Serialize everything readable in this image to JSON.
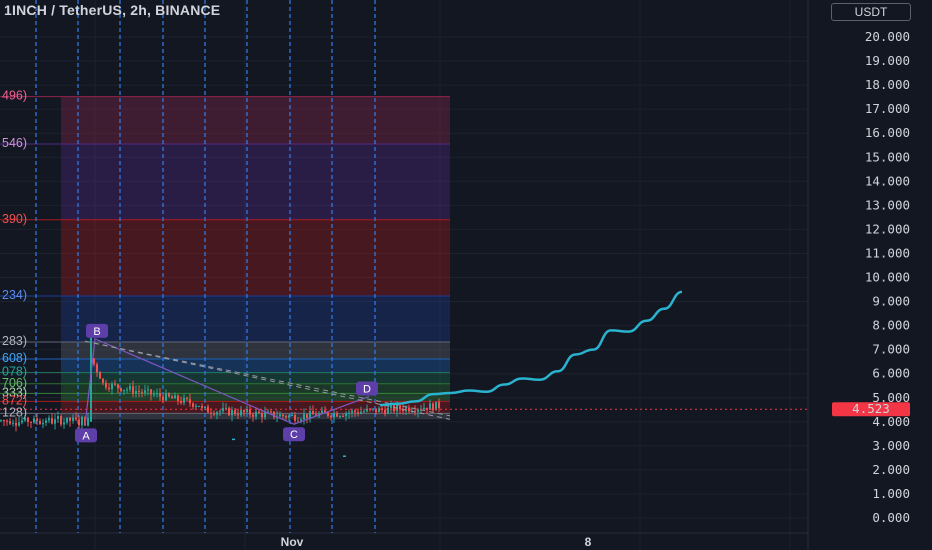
{
  "header": {
    "title": "1INCH / TetherUS, 2h, BINANCE",
    "currency": "USDT"
  },
  "colors": {
    "background": "#131722",
    "grid": "#1e222d",
    "vline": "#2f7ff0",
    "up": "#26a69a",
    "down": "#ef5350",
    "projection": "#2ab3cf",
    "point_label": "#5e3ea8",
    "price_tag": "#f23645"
  },
  "chart_data": {
    "type": "line",
    "y_axis": {
      "min": 0,
      "max": 21,
      "ticks": [
        "0.000",
        "1.000",
        "2.000",
        "3.000",
        "4.000",
        "5.000",
        "6.000",
        "7.000",
        "8.000",
        "9.000",
        "10.000",
        "11.000",
        "12.000",
        "13.000",
        "14.000",
        "15.000",
        "16.000",
        "17.000",
        "18.000",
        "19.000",
        "20.000"
      ]
    },
    "x_axis": {
      "labels": [
        "Nov",
        "8"
      ]
    },
    "last_price": {
      "value": 4.523,
      "label": "4.523"
    },
    "fib_zones": [
      {
        "from": 15.55,
        "to": 17.52,
        "color": "#9c2750",
        "label": "496)",
        "label_color": "#f06292"
      },
      {
        "from": 12.4,
        "to": 15.55,
        "color": "#5a2a8e",
        "label": "546)",
        "label_color": "#ce93d8"
      },
      {
        "from": 9.23,
        "to": 12.4,
        "color": "#b71c1c",
        "label": "390)",
        "label_color": "#ef5350"
      },
      {
        "from": 7.32,
        "to": 9.23,
        "color": "#1e40a0",
        "label": "234)",
        "label_color": "#5b8def"
      },
      {
        "from": 6.61,
        "to": 7.32,
        "color": "#6b6f7a",
        "label": "283)",
        "label_color": "#b2b5be"
      },
      {
        "from": 6.05,
        "to": 6.61,
        "color": "#1e6cc8",
        "label": "608)",
        "label_color": "#42a5f5"
      },
      {
        "from": 5.58,
        "to": 6.05,
        "color": "#1f7a5a",
        "label": "078)",
        "label_color": "#26a69a"
      },
      {
        "from": 5.18,
        "to": 5.58,
        "color": "#2e7d32",
        "label": "706)",
        "label_color": "#66bb6a"
      },
      {
        "from": 4.85,
        "to": 5.18,
        "color": "#388e3c",
        "label": "333)",
        "label_color": "#a5d6a7"
      },
      {
        "from": 4.35,
        "to": 4.85,
        "color": "#b71c1c",
        "label": "872)",
        "label_color": "#ef5350"
      },
      {
        "from": 4.1,
        "to": 4.35,
        "color": "#6b6f7a",
        "label": "128)",
        "label_color": "#b2b5be"
      }
    ],
    "points": [
      {
        "label": "A",
        "value": 3.85
      },
      {
        "label": "B",
        "value": 7.45
      },
      {
        "label": "C",
        "value": 3.9
      },
      {
        "label": "D",
        "value": 5.05
      }
    ],
    "projection": [
      4.7,
      4.75,
      4.85,
      5.15,
      5.2,
      5.3,
      5.25,
      5.55,
      5.8,
      5.75,
      6.1,
      6.8,
      7.0,
      7.8,
      7.75,
      8.2,
      8.7,
      9.4
    ]
  }
}
